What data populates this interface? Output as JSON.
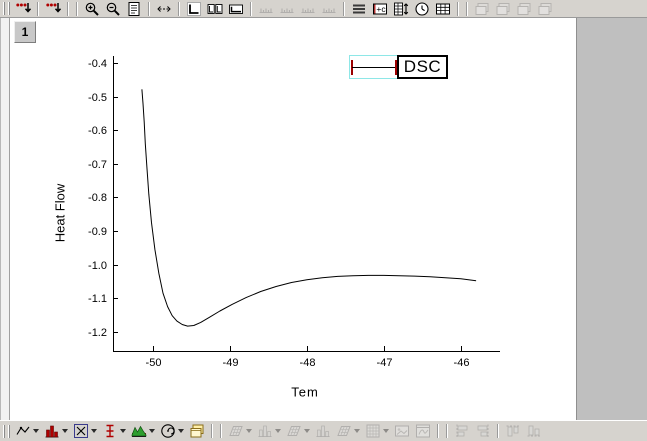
{
  "window": {
    "layer_label": "1"
  },
  "legend": {
    "label": "DSC"
  },
  "colors": {
    "toolbar_bg": "#d6d3ce",
    "workspace_bg": "#bfbfbf",
    "page_bg": "#ffffff",
    "curve": "#000000",
    "legend_selection": "#8ee7e7",
    "legend_handle": "#9c0000",
    "icon_red": "#b00000"
  },
  "top_toolbar": {
    "items": [
      {
        "name": "import-multiple-ascii",
        "icon": "import"
      },
      {
        "sep": true
      },
      {
        "name": "import-ascii",
        "icon": "import"
      },
      {
        "sep": "double"
      },
      {
        "name": "zoom-in",
        "icon": "zoomin"
      },
      {
        "name": "zoom-out",
        "icon": "zoomout"
      },
      {
        "name": "whole-page",
        "icon": "page"
      },
      {
        "sep": true
      },
      {
        "name": "rescale",
        "icon": "rescale"
      },
      {
        "sep": true
      },
      {
        "name": "axes-corner",
        "icon": "axcorner"
      },
      {
        "name": "axes-opposite",
        "icon": "axboxes"
      },
      {
        "name": "axes-frame",
        "icon": "axwide"
      },
      {
        "sep": true
      },
      {
        "name": "add-top-axis",
        "icon": "ruler",
        "disabled": true
      },
      {
        "name": "add-right-axis",
        "icon": "ruler",
        "disabled": true
      },
      {
        "name": "add-left-axis",
        "icon": "ruler",
        "disabled": true
      },
      {
        "name": "add-bottom-axis",
        "icon": "ruler",
        "disabled": true
      },
      {
        "sep": true
      },
      {
        "name": "line-style",
        "icon": "hlines"
      },
      {
        "name": "add-color-scale",
        "icon": "plusc"
      },
      {
        "name": "exchange-columns",
        "icon": "sheetud"
      },
      {
        "name": "date-time",
        "icon": "clock"
      },
      {
        "name": "new-table",
        "icon": "grid"
      },
      {
        "sep": "double"
      },
      {
        "name": "layer-tool-1",
        "icon": "winstack",
        "disabled": true
      },
      {
        "name": "layer-tool-2",
        "icon": "winstack",
        "disabled": true
      },
      {
        "name": "layer-tool-3",
        "icon": "winstack",
        "disabled": true
      },
      {
        "name": "layer-tool-4",
        "icon": "winstack",
        "disabled": true
      }
    ]
  },
  "bottom_toolbar": {
    "items": [
      {
        "name": "line-plot",
        "icon": "lineplot",
        "dropdown": true
      },
      {
        "name": "column-plot",
        "icon": "column",
        "dropdown": true
      },
      {
        "name": "scatter-plot",
        "icon": "scatterx",
        "dropdown": true
      },
      {
        "name": "box-plot",
        "icon": "boxerr",
        "dropdown": true
      },
      {
        "name": "area-plot",
        "icon": "area",
        "dropdown": true
      },
      {
        "name": "polar-plot",
        "icon": "polar",
        "dropdown": true
      },
      {
        "name": "template-library",
        "icon": "template"
      },
      {
        "sep": "double"
      },
      {
        "name": "3d-surface-plot",
        "icon": "s3dsurf",
        "disabled": true,
        "dropdown": true
      },
      {
        "name": "3d-bar-plot",
        "icon": "s3dbars",
        "disabled": true,
        "dropdown": true
      },
      {
        "name": "3d-mesh-plot",
        "icon": "s3dsurf",
        "disabled": true,
        "dropdown": true
      },
      {
        "name": "3d-ribbon-plot",
        "icon": "s3dbars",
        "disabled": true
      },
      {
        "name": "3d-wire-plot",
        "icon": "s3dsurf",
        "disabled": true,
        "dropdown": true
      },
      {
        "name": "matrix-plot",
        "icon": "matrix",
        "disabled": true,
        "dropdown": true
      },
      {
        "name": "refresh-image",
        "icon": "image",
        "disabled": true
      },
      {
        "name": "graph-window",
        "icon": "graphw",
        "disabled": true
      },
      {
        "sep": "double"
      },
      {
        "name": "align-left",
        "icon": "alignl",
        "disabled": true
      },
      {
        "name": "align-right",
        "icon": "alignr",
        "disabled": true
      },
      {
        "sep": true
      },
      {
        "name": "align-top",
        "icon": "aligntop",
        "disabled": true
      },
      {
        "name": "align-bottom",
        "icon": "alignbot",
        "disabled": true
      }
    ]
  },
  "chart_data": {
    "type": "line",
    "title": "",
    "xlabel": "Tem",
    "ylabel": "Heat Flow",
    "xlim": [
      -50.52,
      -45.49
    ],
    "ylim": [
      -1.257,
      -0.379
    ],
    "grid": false,
    "legend_position": "top-right",
    "xticks": [
      {
        "v": -50,
        "label": "-50"
      },
      {
        "v": -49,
        "label": "-49"
      },
      {
        "v": -48,
        "label": "-48"
      },
      {
        "v": -47,
        "label": "-47"
      },
      {
        "v": -46,
        "label": "-46"
      }
    ],
    "yticks": [
      {
        "v": -0.4,
        "label": "-0.4"
      },
      {
        "v": -0.5,
        "label": "-0.5"
      },
      {
        "v": -0.6,
        "label": "-0.6"
      },
      {
        "v": -0.7,
        "label": "-0.7"
      },
      {
        "v": -0.8,
        "label": "-0.8"
      },
      {
        "v": -0.9,
        "label": "-0.9"
      },
      {
        "v": -1.0,
        "label": "-1.0"
      },
      {
        "v": -1.1,
        "label": "-1.1"
      },
      {
        "v": -1.2,
        "label": "-1.2"
      }
    ],
    "series": [
      {
        "name": "DSC",
        "color": "#000000",
        "points": [
          [
            -50.145,
            -0.478
          ],
          [
            -50.13,
            -0.52
          ],
          [
            -50.115,
            -0.575
          ],
          [
            -50.1,
            -0.64
          ],
          [
            -50.08,
            -0.71
          ],
          [
            -50.055,
            -0.79
          ],
          [
            -50.02,
            -0.875
          ],
          [
            -49.975,
            -0.955
          ],
          [
            -49.925,
            -1.025
          ],
          [
            -49.87,
            -1.085
          ],
          [
            -49.81,
            -1.125
          ],
          [
            -49.75,
            -1.152
          ],
          [
            -49.69,
            -1.168
          ],
          [
            -49.62,
            -1.178
          ],
          [
            -49.55,
            -1.183
          ],
          [
            -49.47,
            -1.181
          ],
          [
            -49.38,
            -1.172
          ],
          [
            -49.27,
            -1.157
          ],
          [
            -49.13,
            -1.138
          ],
          [
            -48.97,
            -1.118
          ],
          [
            -48.79,
            -1.098
          ],
          [
            -48.6,
            -1.08
          ],
          [
            -48.4,
            -1.065
          ],
          [
            -48.2,
            -1.053
          ],
          [
            -48.0,
            -1.045
          ],
          [
            -47.8,
            -1.039
          ],
          [
            -47.6,
            -1.035
          ],
          [
            -47.4,
            -1.033
          ],
          [
            -47.2,
            -1.032
          ],
          [
            -47.0,
            -1.032
          ],
          [
            -46.8,
            -1.033
          ],
          [
            -46.6,
            -1.034
          ],
          [
            -46.4,
            -1.036
          ],
          [
            -46.2,
            -1.039
          ],
          [
            -46.0,
            -1.042
          ],
          [
            -45.9,
            -1.045
          ],
          [
            -45.8,
            -1.048
          ]
        ]
      }
    ]
  }
}
